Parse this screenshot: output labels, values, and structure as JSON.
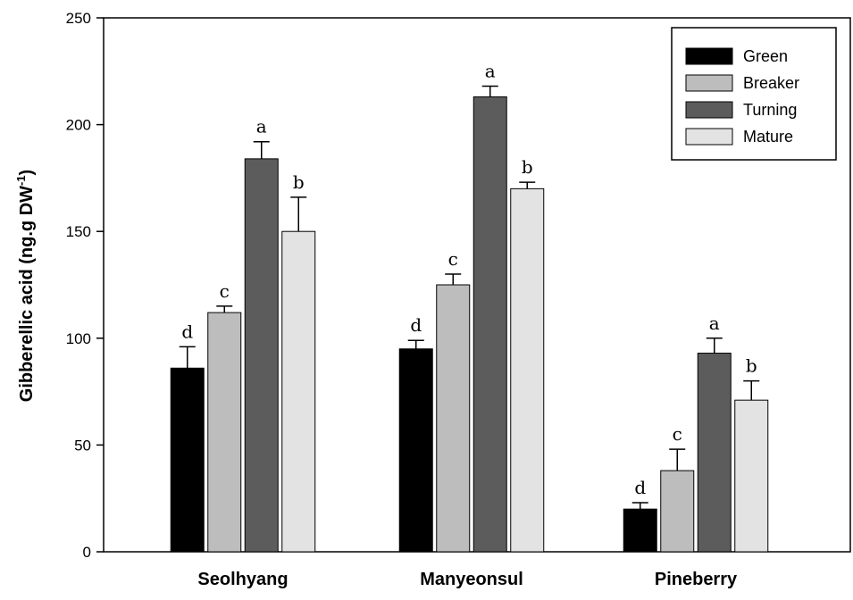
{
  "chart_data": {
    "type": "bar",
    "title": "",
    "xlabel": "",
    "ylabel": "Gibberellic acid (ng.g DW",
    "ylabel_superscript": "-1",
    "ylabel_suffix": ")",
    "ylim": [
      0,
      250
    ],
    "yticks": [
      0,
      50,
      100,
      150,
      200,
      250
    ],
    "categories": [
      "Seolhyang",
      "Manyeonsul",
      "Pineberry"
    ],
    "legend_position": "top-right",
    "series": [
      {
        "name": "Green",
        "color": "#000000",
        "values": [
          86,
          95,
          20
        ],
        "errors": [
          10,
          4,
          3
        ],
        "letters": [
          "d",
          "d",
          "d"
        ]
      },
      {
        "name": "Breaker",
        "color": "#bdbdbd",
        "values": [
          112,
          125,
          38
        ],
        "errors": [
          3,
          5,
          10
        ],
        "letters": [
          "c",
          "c",
          "c"
        ]
      },
      {
        "name": "Turning",
        "color": "#5c5c5c",
        "values": [
          184,
          213,
          93
        ],
        "errors": [
          8,
          5,
          7
        ],
        "letters": [
          "a",
          "a",
          "a"
        ]
      },
      {
        "name": "Mature",
        "color": "#e3e3e3",
        "values": [
          150,
          170,
          71
        ],
        "errors": [
          16,
          3,
          9
        ],
        "letters": [
          "b",
          "b",
          "b"
        ]
      }
    ]
  }
}
